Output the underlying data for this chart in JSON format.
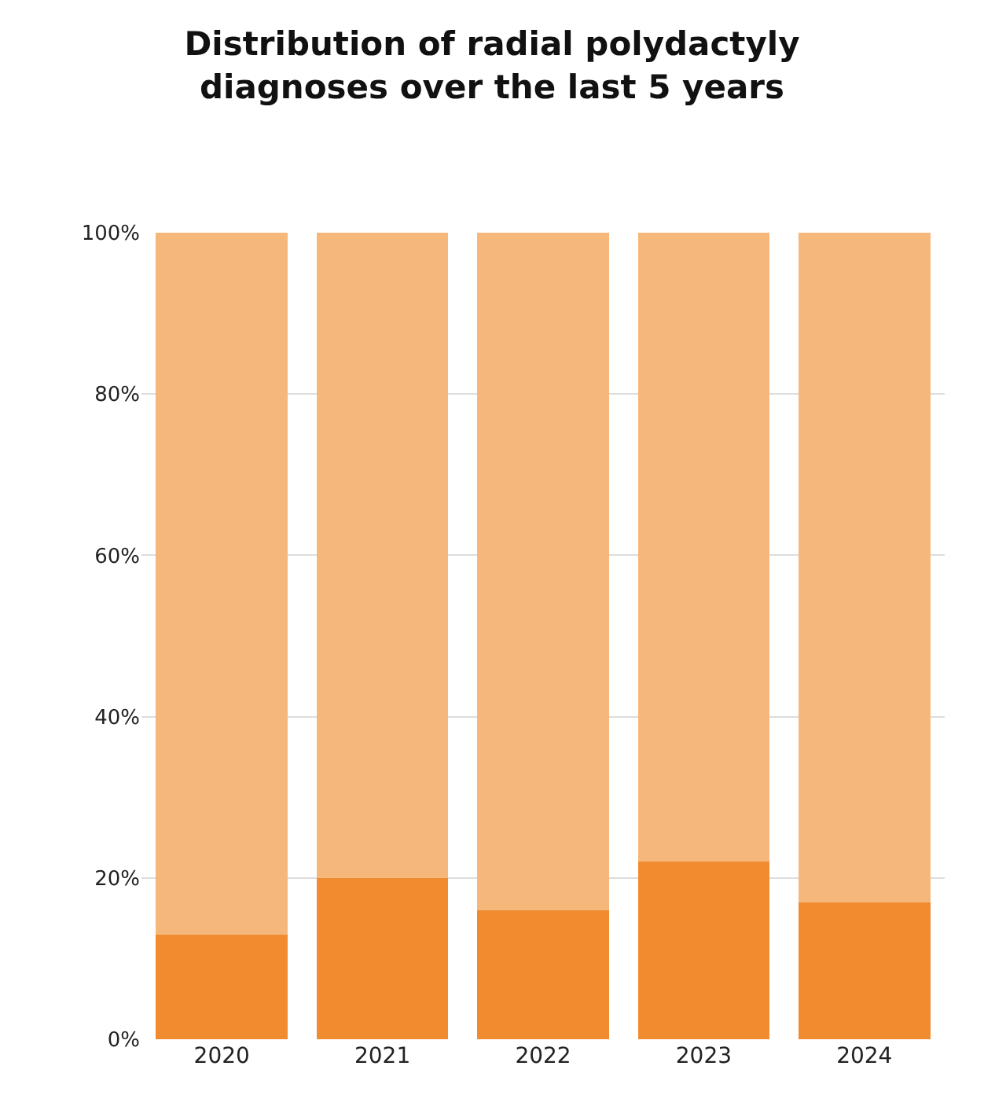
{
  "chart_data": {
    "type": "bar",
    "title": "Distribution of radial polydactyly\ndiagnoses over the last 5 years",
    "categories": [
      "2020",
      "2021",
      "2022",
      "2023",
      "2024"
    ],
    "stacked": true,
    "series": [
      {
        "color": "#f08b30",
        "values": [
          13,
          20,
          16,
          22,
          17
        ]
      },
      {
        "color": "#f6b77b",
        "values": [
          87,
          80,
          84,
          78,
          83
        ]
      }
    ],
    "ylim": [
      0,
      100
    ],
    "yticks": [
      {
        "value": 0,
        "label": "0%"
      },
      {
        "value": 20,
        "label": "20%"
      },
      {
        "value": 40,
        "label": "40%"
      },
      {
        "value": 60,
        "label": "60%"
      },
      {
        "value": 80,
        "label": "80%"
      },
      {
        "value": 100,
        "label": "100%"
      }
    ],
    "grid": "y"
  }
}
